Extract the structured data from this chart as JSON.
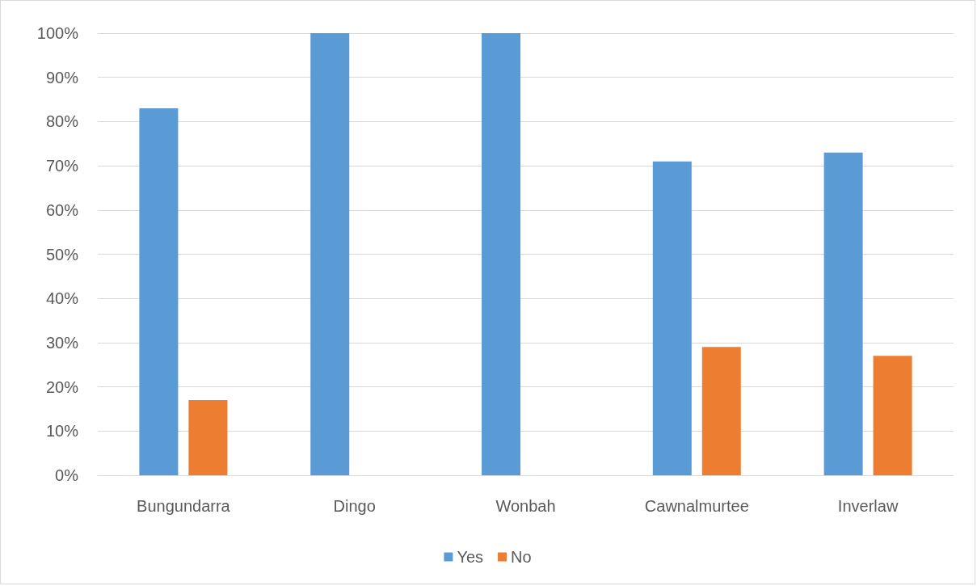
{
  "chart_data": {
    "type": "bar",
    "categories": [
      "Bungundarra",
      "Dingo",
      "Wonbah",
      "Cawnalmurtee",
      "Inverlaw"
    ],
    "series": [
      {
        "name": "Yes",
        "color": "#5b9bd5",
        "values": [
          83,
          100,
          100,
          71,
          73
        ]
      },
      {
        "name": "No",
        "color": "#ed7d31",
        "values": [
          17,
          0,
          0,
          29,
          27
        ]
      }
    ],
    "ylim": [
      0,
      100
    ],
    "yticks": [
      {
        "value": 0,
        "label": "0%"
      },
      {
        "value": 10,
        "label": "10%"
      },
      {
        "value": 20,
        "label": "20%"
      },
      {
        "value": 30,
        "label": "30%"
      },
      {
        "value": 40,
        "label": "40%"
      },
      {
        "value": 50,
        "label": "50%"
      },
      {
        "value": 60,
        "label": "60%"
      },
      {
        "value": 70,
        "label": "70%"
      },
      {
        "value": 80,
        "label": "80%"
      },
      {
        "value": 90,
        "label": "90%"
      },
      {
        "value": 100,
        "label": "100%"
      }
    ],
    "grid": "y",
    "legend": "bottom"
  }
}
